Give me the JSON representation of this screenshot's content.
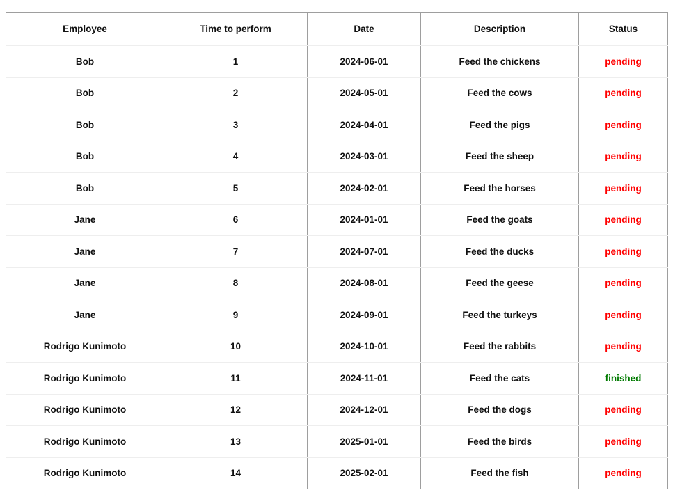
{
  "table": {
    "headers": [
      "Employee",
      "Time to perform",
      "Date",
      "Description",
      "Status"
    ],
    "rows": [
      {
        "employee": "Bob",
        "time": "1",
        "date": "2024-06-01",
        "description": "Feed the chickens",
        "status": "pending"
      },
      {
        "employee": "Bob",
        "time": "2",
        "date": "2024-05-01",
        "description": "Feed the cows",
        "status": "pending"
      },
      {
        "employee": "Bob",
        "time": "3",
        "date": "2024-04-01",
        "description": "Feed the pigs",
        "status": "pending"
      },
      {
        "employee": "Bob",
        "time": "4",
        "date": "2024-03-01",
        "description": "Feed the sheep",
        "status": "pending"
      },
      {
        "employee": "Bob",
        "time": "5",
        "date": "2024-02-01",
        "description": "Feed the horses",
        "status": "pending"
      },
      {
        "employee": "Jane",
        "time": "6",
        "date": "2024-01-01",
        "description": "Feed the goats",
        "status": "pending"
      },
      {
        "employee": "Jane",
        "time": "7",
        "date": "2024-07-01",
        "description": "Feed the ducks",
        "status": "pending"
      },
      {
        "employee": "Jane",
        "time": "8",
        "date": "2024-08-01",
        "description": "Feed the geese",
        "status": "pending"
      },
      {
        "employee": "Jane",
        "time": "9",
        "date": "2024-09-01",
        "description": "Feed the turkeys",
        "status": "pending"
      },
      {
        "employee": "Rodrigo Kunimoto",
        "time": "10",
        "date": "2024-10-01",
        "description": "Feed the rabbits",
        "status": "pending"
      },
      {
        "employee": "Rodrigo Kunimoto",
        "time": "11",
        "date": "2024-11-01",
        "description": "Feed the cats",
        "status": "finished"
      },
      {
        "employee": "Rodrigo Kunimoto",
        "time": "12",
        "date": "2024-12-01",
        "description": "Feed the dogs",
        "status": "pending"
      },
      {
        "employee": "Rodrigo Kunimoto",
        "time": "13",
        "date": "2025-01-01",
        "description": "Feed the birds",
        "status": "pending"
      },
      {
        "employee": "Rodrigo Kunimoto",
        "time": "14",
        "date": "2025-02-01",
        "description": "Feed the fish",
        "status": "pending"
      }
    ]
  },
  "colors": {
    "pending": "#ff0000",
    "finished": "#007a00"
  }
}
